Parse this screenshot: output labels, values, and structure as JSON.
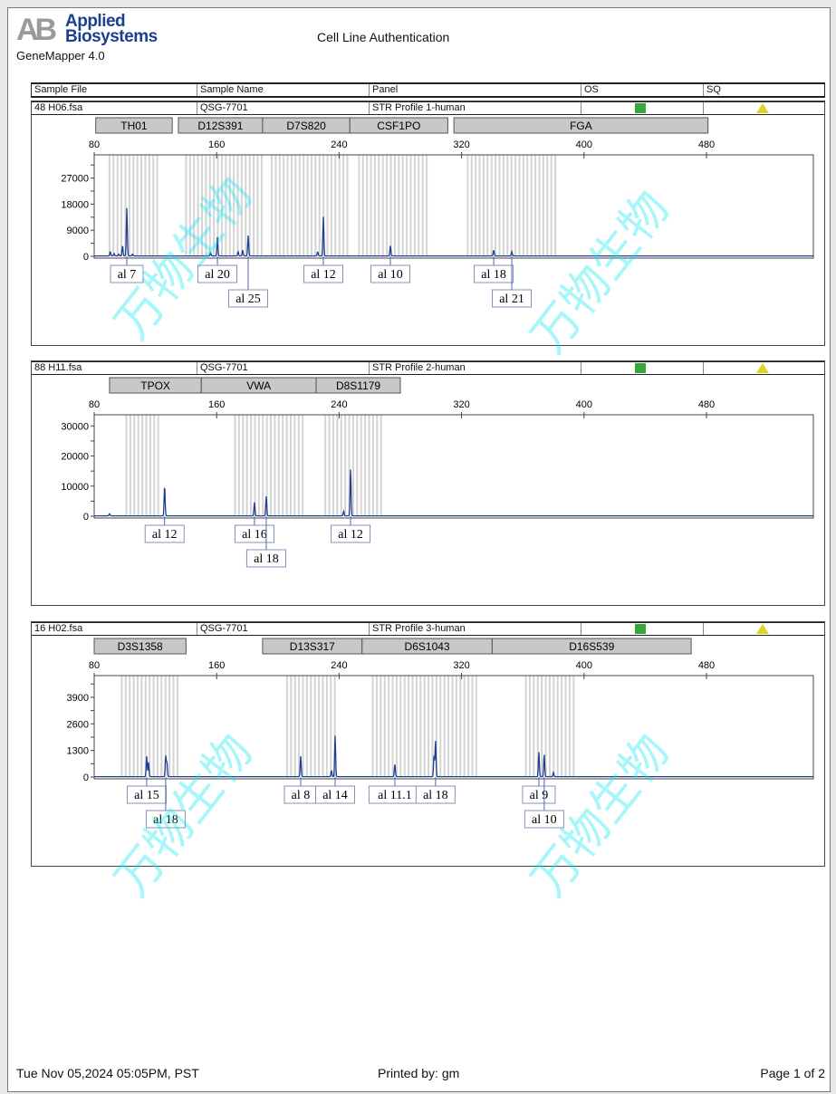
{
  "header": {
    "logo_mark": "AB",
    "logo_line1": "Applied",
    "logo_line2": "Biosystems",
    "app_version": "GeneMapper  4.0",
    "report_title": "Cell Line Authentication"
  },
  "table_columns": [
    "Sample File",
    "Sample Name",
    "Panel",
    "OS",
    "SQ"
  ],
  "status_colors": {
    "os": "#3aa53a",
    "sq": "#e0d22a",
    "trace": "#1f3f8f",
    "bin": "#d4d4d4"
  },
  "watermark": "万物生物",
  "chart_data": [
    {
      "type": "line",
      "sample_file": "48  H06.fsa",
      "sample_name": "QSG-7701",
      "panel": "STR Profile 1-human",
      "os_status": "green-square",
      "sq_status": "yellow-triangle",
      "x_ticks": [
        80,
        160,
        240,
        320,
        400,
        480
      ],
      "y_ticks": [
        0,
        9000,
        18000,
        27000
      ],
      "ylim": [
        0,
        35000
      ],
      "xlim": [
        80,
        550
      ],
      "loci": [
        {
          "name": "TH01",
          "range": [
            81,
            131
          ]
        },
        {
          "name": "D12S391",
          "range": [
            135,
            190
          ]
        },
        {
          "name": "D7S820",
          "range": [
            190,
            247
          ]
        },
        {
          "name": "CSF1PO",
          "range": [
            247,
            311
          ]
        },
        {
          "name": "FGA",
          "range": [
            315,
            481
          ]
        }
      ],
      "bins": [
        [
          90,
          123
        ],
        [
          140,
          190
        ],
        [
          196,
          247
        ],
        [
          253,
          298
        ],
        [
          324,
          383
        ]
      ],
      "peaks": [
        {
          "x": 90.5,
          "height": 1500
        },
        {
          "x": 93,
          "height": 800
        },
        {
          "x": 96,
          "height": 600
        },
        {
          "x": 98.5,
          "height": 3500
        },
        {
          "x": 101.3,
          "height": 16500,
          "label": "al 7",
          "row": 1
        },
        {
          "x": 105,
          "height": 600
        },
        {
          "x": 156,
          "height": 1000
        },
        {
          "x": 160.5,
          "height": 6500,
          "label": "al 20",
          "row": 1
        },
        {
          "x": 174,
          "height": 1500
        },
        {
          "x": 177,
          "height": 2000
        },
        {
          "x": 180.6,
          "height": 7000,
          "label": "al 25",
          "row": 2
        },
        {
          "x": 226,
          "height": 1400
        },
        {
          "x": 229.7,
          "height": 13500,
          "label": "al 12",
          "row": 1
        },
        {
          "x": 273.5,
          "height": 3500,
          "label": "al 10",
          "row": 1
        },
        {
          "x": 341,
          "height": 2000,
          "label": "al 18",
          "row": 1
        },
        {
          "x": 352.8,
          "height": 1500,
          "label": "al 21",
          "row": 2
        }
      ]
    },
    {
      "type": "line",
      "sample_file": "88  H11.fsa",
      "sample_name": "QSG-7701",
      "panel": "STR Profile 2-human",
      "os_status": "green-square",
      "sq_status": "yellow-triangle",
      "x_ticks": [
        80,
        160,
        240,
        320,
        400,
        480
      ],
      "y_ticks": [
        0,
        10000,
        20000,
        30000
      ],
      "ylim": [
        0,
        33700
      ],
      "xlim": [
        80,
        550
      ],
      "loci": [
        {
          "name": "TPOX",
          "range": [
            90,
            150
          ]
        },
        {
          "name": "VWA",
          "range": [
            150,
            225
          ]
        },
        {
          "name": "D8S1179",
          "range": [
            225,
            280
          ]
        }
      ],
      "bins": [
        [
          101,
          123
        ],
        [
          172,
          217
        ],
        [
          231,
          270
        ]
      ],
      "peaks": [
        {
          "x": 90,
          "height": 700
        },
        {
          "x": 126,
          "height": 10000,
          "label": "al 12",
          "row": 1
        },
        {
          "x": 184.7,
          "height": 4500,
          "label": "al 16",
          "row": 1
        },
        {
          "x": 192.4,
          "height": 6500,
          "label": "al 18",
          "row": 2
        },
        {
          "x": 243,
          "height": 1500
        },
        {
          "x": 247.5,
          "height": 15500,
          "label": "al 12",
          "row": 1
        }
      ]
    },
    {
      "type": "line",
      "sample_file": "16  H02.fsa",
      "sample_name": "QSG-7701",
      "panel": "STR Profile 3-human",
      "os_status": "green-square",
      "sq_status": "yellow-triangle",
      "x_ticks": [
        80,
        160,
        240,
        320,
        400,
        480
      ],
      "y_ticks": [
        0,
        1300,
        2600,
        3900
      ],
      "ylim": [
        0,
        4960
      ],
      "xlim": [
        80,
        550
      ],
      "loci": [
        {
          "name": "D3S1358",
          "range": [
            80,
            140
          ]
        },
        {
          "name": "D13S317",
          "range": [
            190,
            255
          ]
        },
        {
          "name": "D6S1043",
          "range": [
            255,
            340
          ]
        },
        {
          "name": "D16S539",
          "range": [
            340,
            470
          ]
        }
      ],
      "bins": [
        [
          98,
          136
        ],
        [
          206,
          239
        ],
        [
          262,
          331
        ],
        [
          362,
          395
        ]
      ],
      "peaks": [
        {
          "x": 114.3,
          "height": 1000,
          "label": "al 15",
          "row": 1
        },
        {
          "x": 115.5,
          "height": 700
        },
        {
          "x": 126.7,
          "height": 1000,
          "label": "al 18",
          "row": 2
        },
        {
          "x": 127.5,
          "height": 700
        },
        {
          "x": 214.9,
          "height": 1000,
          "label": "al 8",
          "row": 1
        },
        {
          "x": 235,
          "height": 300
        },
        {
          "x": 237.4,
          "height": 2000,
          "label": "al 14",
          "row": 1
        },
        {
          "x": 276.4,
          "height": 600,
          "label": "al 11.1",
          "row": 1
        },
        {
          "x": 302,
          "height": 1000
        },
        {
          "x": 303,
          "height": 1800,
          "label": "al 18",
          "row": 1
        },
        {
          "x": 370.5,
          "height": 1200,
          "label": "al 9",
          "row": 1
        },
        {
          "x": 374,
          "height": 1100,
          "label": "al 10",
          "row": 2
        },
        {
          "x": 380,
          "height": 200
        }
      ]
    }
  ],
  "footer": {
    "printed_date": "Tue Nov 05,2024 05:05PM, PST",
    "printed_by": "Printed by: gm",
    "page": "Page 1 of 2"
  }
}
